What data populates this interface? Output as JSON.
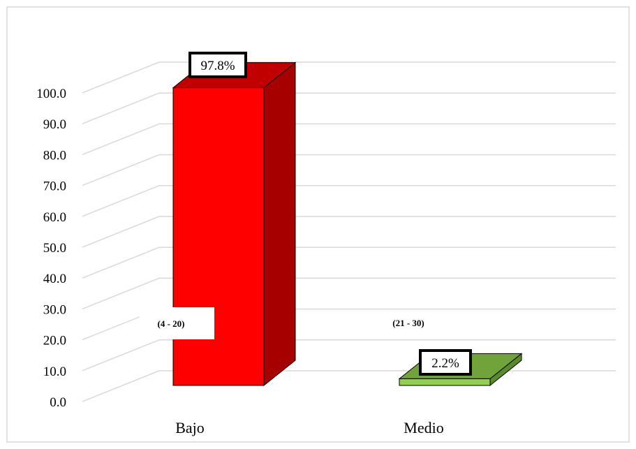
{
  "chart_data": {
    "type": "bar",
    "title": "",
    "xlabel": "",
    "ylabel": "",
    "categories": [
      "Bajo",
      "Medio"
    ],
    "values": [
      97.8,
      2.2
    ],
    "data_labels": [
      "97.8%",
      "2.2%"
    ],
    "range_labels": [
      "(4 - 20)",
      "(21 - 30)"
    ],
    "ylim": [
      0,
      100
    ],
    "yticks": [
      "0.0",
      "10.0",
      "20.0",
      "30.0",
      "40.0",
      "50.0",
      "60.0",
      "70.0",
      "80.0",
      "90.0",
      "100.0"
    ],
    "grid": true,
    "legend": "none",
    "style": "3d-column",
    "colors": {
      "bar_front": [
        "#ff0000",
        "#92d050"
      ],
      "bar_side": [
        "#a60000",
        "#5a8a2a"
      ],
      "bar_top": [
        "#c00000",
        "#70a33a"
      ],
      "grid": "#d9d9d9",
      "frame": "#d9d9d9"
    }
  }
}
